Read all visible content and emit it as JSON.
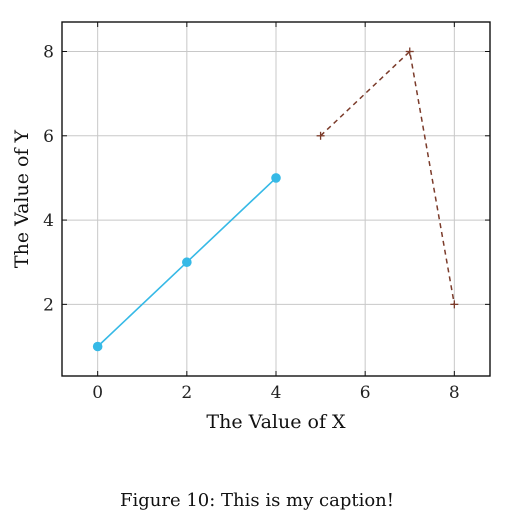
{
  "caption": "Figure 10: This is my caption!",
  "chart_data": {
    "type": "line",
    "xlabel": "The Value of X",
    "ylabel": "The Value of Y",
    "xlim": [
      -0.8,
      8.8
    ],
    "ylim": [
      0.3,
      8.7
    ],
    "xticks": [
      0,
      2,
      4,
      6,
      8
    ],
    "yticks": [
      2,
      4,
      6,
      8
    ],
    "grid": true,
    "series": [
      {
        "x": [
          0,
          2,
          4
        ],
        "y": [
          1,
          3,
          5
        ],
        "color": "#36b9e6",
        "style": "solid",
        "marker": "circle"
      },
      {
        "x": [
          5,
          7,
          8
        ],
        "y": [
          6,
          8,
          2
        ],
        "color": "#7b3b2a",
        "style": "dashed",
        "marker": "plus"
      }
    ]
  }
}
